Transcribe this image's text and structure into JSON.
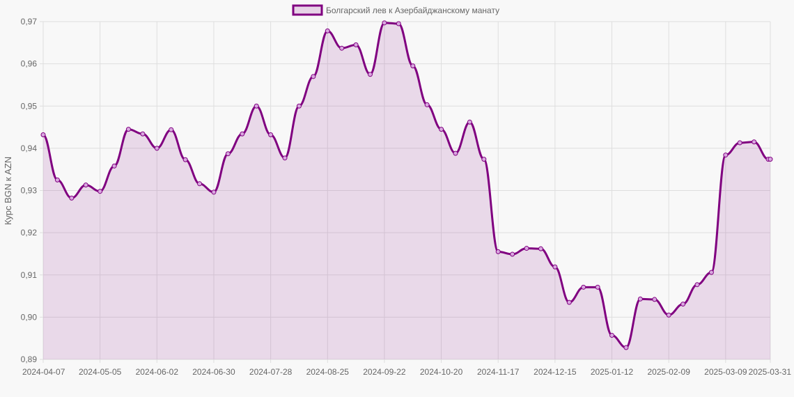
{
  "chart_data": {
    "type": "line",
    "legend": {
      "label": "Болгарский лев к Азербайджанскому манату",
      "position": "top-center"
    },
    "ylabel": "Курс BGN к AZN",
    "ylim": [
      0.89,
      0.97
    ],
    "y_ticks": [
      "0,97",
      "0,96",
      "0,95",
      "0,94",
      "0,93",
      "0,92",
      "0,91",
      "0,90",
      "0,89"
    ],
    "x_tick_labels": [
      "2024-04-07",
      "2024-05-05",
      "2024-06-02",
      "2024-06-30",
      "2024-07-28",
      "2024-08-25",
      "2024-09-22",
      "2024-10-20",
      "2024-11-17",
      "2024-12-15",
      "2025-01-12",
      "2025-02-09",
      "2025-03-09",
      "2025-03-31"
    ],
    "grid": true,
    "colors": {
      "line": "#800080",
      "fill": "#800080",
      "point_fill": "#d9a8e0",
      "grid": "#dedede"
    },
    "series": [
      {
        "name": "Болгарский лев к Азербайджанскому манату",
        "x": [
          "2024-04-07",
          "2024-04-14",
          "2024-04-21",
          "2024-04-28",
          "2024-05-05",
          "2024-05-12",
          "2024-05-19",
          "2024-05-26",
          "2024-06-02",
          "2024-06-09",
          "2024-06-16",
          "2024-06-23",
          "2024-06-30",
          "2024-07-07",
          "2024-07-14",
          "2024-07-21",
          "2024-07-28",
          "2024-08-04",
          "2024-08-11",
          "2024-08-18",
          "2024-08-25",
          "2024-09-01",
          "2024-09-08",
          "2024-09-15",
          "2024-09-22",
          "2024-09-29",
          "2024-10-06",
          "2024-10-13",
          "2024-10-20",
          "2024-10-27",
          "2024-11-03",
          "2024-11-10",
          "2024-11-17",
          "2024-11-24",
          "2024-12-01",
          "2024-12-08",
          "2024-12-15",
          "2024-12-22",
          "2024-12-29",
          "2025-01-05",
          "2025-01-12",
          "2025-01-19",
          "2025-01-26",
          "2025-02-02",
          "2025-02-09",
          "2025-02-16",
          "2025-02-23",
          "2025-03-02",
          "2025-03-09",
          "2025-03-16",
          "2025-03-23",
          "2025-03-30",
          "2025-03-31"
        ],
        "values": [
          0.9432,
          0.9325,
          0.9282,
          0.9313,
          0.9298,
          0.9358,
          0.9445,
          0.9434,
          0.94,
          0.9444,
          0.9373,
          0.9316,
          0.9296,
          0.9387,
          0.9434,
          0.95,
          0.9432,
          0.9377,
          0.95,
          0.957,
          0.9678,
          0.9637,
          0.9645,
          0.9575,
          0.9697,
          0.9695,
          0.9595,
          0.9503,
          0.9445,
          0.9388,
          0.9462,
          0.9374,
          0.9155,
          0.9149,
          0.9163,
          0.9162,
          0.9119,
          0.9035,
          0.9071,
          0.9071,
          0.8957,
          0.8928,
          0.9043,
          0.9042,
          0.9005,
          0.9031,
          0.9077,
          0.9106,
          0.9384,
          0.9413,
          0.9415,
          0.9374,
          0.9374
        ]
      }
    ]
  }
}
